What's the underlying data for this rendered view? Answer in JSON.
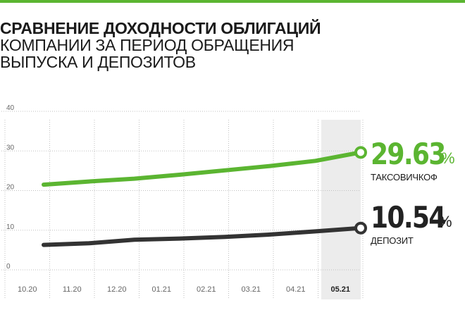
{
  "title_lines": [
    "СРАВНЕНИЕ ДОХОДНОСТИ ОБЛИГАЦИЙ",
    "КОМПАНИИ ЗА ПЕРИОД ОБРАЩЕНИЯ",
    "ВЫПУСКА И ДЕПОЗИТОВ"
  ],
  "colors": {
    "accent": "#5bb531",
    "dark": "#333333",
    "grid": "#bfbfbf",
    "highlight_band": "#ececec"
  },
  "labels": {
    "taxi_value": "29.63",
    "taxi_pct": "%",
    "taxi_name": "ТАКСОВИЧКОФ",
    "deposit_value": "10.54",
    "deposit_pct": "%",
    "deposit_name": "ДЕПОЗИТ"
  },
  "chart_data": {
    "type": "line",
    "categories": [
      "10.20",
      "11.20",
      "12.20",
      "01.21",
      "02.21",
      "03.21",
      "04.21",
      "05.21"
    ],
    "highlight_category": "05.21",
    "ylim": [
      0,
      40
    ],
    "yticks": [
      0,
      10,
      20,
      30,
      40
    ],
    "grid": true,
    "series": [
      {
        "name": "ТАКСОВИЧКОФ",
        "color": "#5bb531",
        "values": [
          21.5,
          22.3,
          23.0,
          24.0,
          25.1,
          26.2,
          27.5,
          29.63
        ]
      },
      {
        "name": "ДЕПОЗИТ",
        "color": "#333333",
        "values": [
          6.3,
          6.7,
          7.6,
          7.9,
          8.3,
          8.9,
          9.7,
          10.54
        ]
      }
    ]
  }
}
